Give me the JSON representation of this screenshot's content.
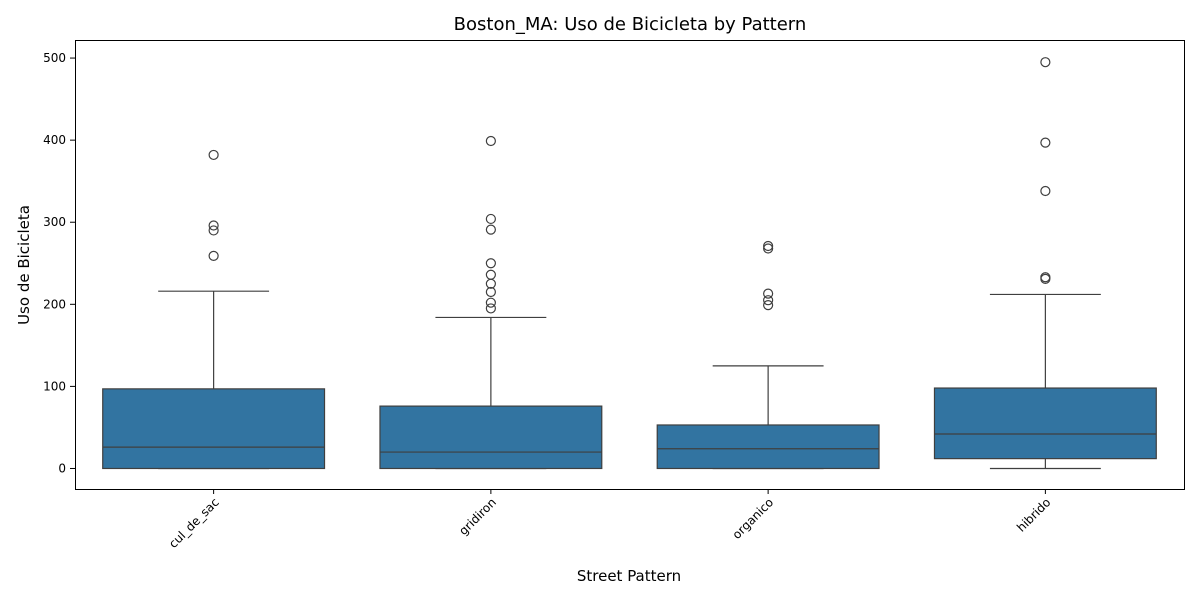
{
  "chart_data": {
    "type": "box",
    "title": "Boston_MA: Uso de Bicicleta by Pattern",
    "xlabel": "Street Pattern",
    "ylabel": "Uso de Bicicleta",
    "ylim": [
      -25,
      522
    ],
    "yticks": [
      0,
      100,
      200,
      300,
      400,
      500
    ],
    "grid": false,
    "box_color": "#3274a1",
    "edge_color": "#3f3f3f",
    "categories": [
      "cul_de_sac",
      "gridiron",
      "organico",
      "hibrido"
    ],
    "boxes": [
      {
        "category": "cul_de_sac",
        "whisker_low": 0,
        "q1": 0,
        "median": 26,
        "q3": 97,
        "whisker_high": 216,
        "outliers": [
          259,
          290,
          296,
          382
        ]
      },
      {
        "category": "gridiron",
        "whisker_low": 0,
        "q1": 0,
        "median": 20,
        "q3": 76,
        "whisker_high": 184,
        "outliers": [
          195,
          202,
          215,
          225,
          236,
          250,
          291,
          304,
          399
        ]
      },
      {
        "category": "organico",
        "whisker_low": 0,
        "q1": 0,
        "median": 24,
        "q3": 53,
        "whisker_high": 125,
        "outliers": [
          199,
          205,
          213,
          268,
          271
        ]
      },
      {
        "category": "hibrido",
        "whisker_low": 0,
        "q1": 12,
        "median": 42,
        "q3": 98,
        "whisker_high": 212,
        "outliers": [
          231,
          233,
          338,
          397,
          495
        ]
      }
    ]
  }
}
